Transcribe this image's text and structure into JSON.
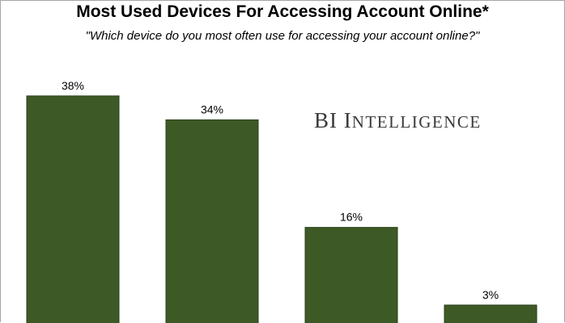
{
  "chart_data": {
    "type": "bar",
    "title": "Most Used Devices For Accessing Account Online*",
    "subtitle": "\"Which device do you most often use for accessing your account online?\"",
    "categories": [
      "",
      "",
      "",
      ""
    ],
    "values": [
      38,
      34,
      16,
      3
    ],
    "data_labels": [
      "38%",
      "34%",
      "16%",
      "3%"
    ],
    "xlabel": "",
    "ylabel": "",
    "ylim": [
      0,
      42
    ],
    "grid": false,
    "legend": "none",
    "bar_color": "#3d5a26"
  },
  "watermark": {
    "initial": "BI I",
    "rest": "NTELLIGENCE"
  }
}
